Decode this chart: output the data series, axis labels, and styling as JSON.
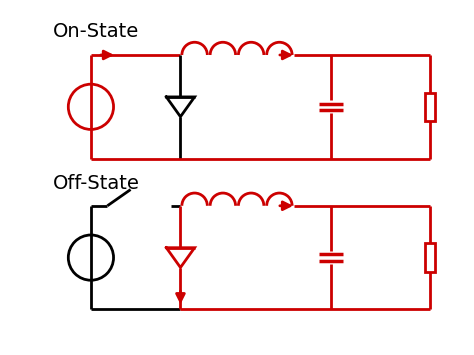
{
  "bg_color": "#ffffff",
  "red": "#cc0000",
  "black": "#000000",
  "on_state_label": "On-State",
  "off_state_label": "Off-State",
  "fig_width": 4.74,
  "fig_height": 3.55,
  "dpi": 100
}
